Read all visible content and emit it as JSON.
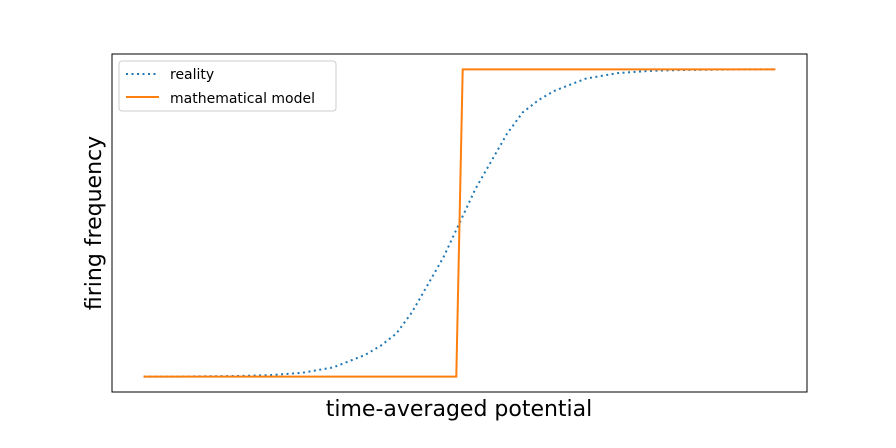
{
  "chart_data": {
    "type": "line",
    "title": "",
    "xlabel": "time-averaged potential",
    "ylabel": "firing frequency",
    "x_ticks_shown": false,
    "y_ticks_shown": false,
    "xlim": [
      -5.5,
      5.5
    ],
    "ylim": [
      -0.05,
      1.05
    ],
    "grid": false,
    "legend_position": "upper-left",
    "series": [
      {
        "name": "reality",
        "style": "dotted",
        "color": "#1f77b4",
        "x": [
          -5.0,
          -4.5,
          -4.0,
          -3.5,
          -3.0,
          -2.5,
          -2.0,
          -1.5,
          -1.25,
          -1.0,
          -0.75,
          -0.5,
          -0.25,
          0.0,
          0.25,
          0.5,
          0.75,
          1.0,
          1.25,
          1.5,
          2.0,
          2.5,
          3.0,
          3.5,
          4.0,
          4.5,
          5.0
        ],
        "y": [
          0.0,
          0.0,
          0.001,
          0.002,
          0.005,
          0.012,
          0.03,
          0.07,
          0.1,
          0.14,
          0.21,
          0.3,
          0.39,
          0.5,
          0.61,
          0.7,
          0.79,
          0.86,
          0.9,
          0.93,
          0.97,
          0.988,
          0.995,
          0.998,
          0.999,
          1.0,
          1.0
        ]
      },
      {
        "name": "mathematical model",
        "style": "solid",
        "color": "#ff7f0e",
        "x": [
          -5.0,
          -0.05,
          0.05,
          5.0
        ],
        "y": [
          0.0,
          0.0,
          1.0,
          1.0
        ]
      }
    ]
  }
}
